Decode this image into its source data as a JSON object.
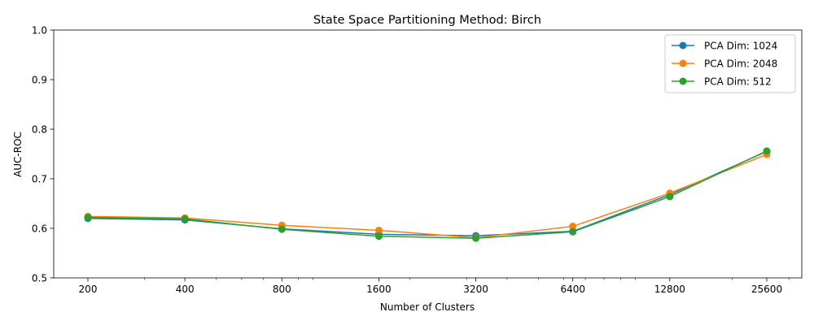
{
  "chart_data": {
    "type": "line",
    "title": "State Space Partitioning Method: Birch",
    "xlabel": "Number of Clusters",
    "ylabel": "AUC-ROC",
    "x_scale": "log2",
    "x": [
      200,
      400,
      800,
      1600,
      3200,
      6400,
      12800,
      25600
    ],
    "x_tick_labels": [
      "200",
      "400",
      "800",
      "1600",
      "3200",
      "6400",
      "12800",
      "25600"
    ],
    "ylim": [
      0.5,
      1.0
    ],
    "y_ticks": [
      0.5,
      0.6,
      0.7,
      0.8,
      0.9,
      1.0
    ],
    "y_tick_labels": [
      "0.5",
      "0.6",
      "0.7",
      "0.8",
      "0.9",
      "1.0"
    ],
    "grid": false,
    "legend_position": "top-right",
    "series": [
      {
        "name": "PCA Dim: 1024",
        "color": "#1f77b4",
        "values": [
          0.62,
          0.617,
          0.599,
          0.588,
          0.585,
          0.594,
          0.668,
          0.755
        ]
      },
      {
        "name": "PCA Dim: 2048",
        "color": "#ff7f0e",
        "values": [
          0.624,
          0.621,
          0.606,
          0.596,
          0.581,
          0.604,
          0.671,
          0.749
        ]
      },
      {
        "name": "PCA Dim: 512",
        "color": "#2ca02c",
        "values": [
          0.622,
          0.619,
          0.598,
          0.584,
          0.58,
          0.593,
          0.664,
          0.756
        ]
      }
    ]
  }
}
